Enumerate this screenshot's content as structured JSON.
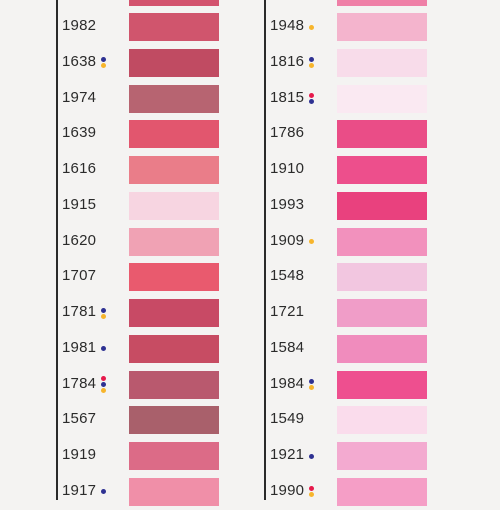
{
  "colors": {
    "blue_dot": "#2e3192",
    "yellow_dot": "#f7b52c",
    "red_dot": "#e6194b"
  },
  "left_column": {
    "top_swatch": "#d3536e",
    "rows": [
      {
        "code": "1982",
        "swatch": "#d0556d",
        "dots": []
      },
      {
        "code": "1638",
        "swatch": "#c04b62",
        "dots": [
          "blue_dot",
          "yellow_dot"
        ]
      },
      {
        "code": "1974",
        "swatch": "#b76471",
        "dots": []
      },
      {
        "code": "1639",
        "swatch": "#e2566e",
        "dots": []
      },
      {
        "code": "1616",
        "swatch": "#ea7d89",
        "dots": []
      },
      {
        "code": "1915",
        "swatch": "#f7d5e1",
        "dots": []
      },
      {
        "code": "1620",
        "swatch": "#f0a2b4",
        "dots": []
      },
      {
        "code": "1707",
        "swatch": "#e95a6e",
        "dots": []
      },
      {
        "code": "1781",
        "swatch": "#c84a65",
        "dots": [
          "blue_dot",
          "yellow_dot"
        ]
      },
      {
        "code": "1981",
        "swatch": "#c74c63",
        "dots": [
          "blue_dot"
        ]
      },
      {
        "code": "1784",
        "swatch": "#b9596e",
        "dots": [
          "red_dot",
          "blue_dot",
          "yellow_dot"
        ]
      },
      {
        "code": "1567",
        "swatch": "#a9606b",
        "dots": []
      },
      {
        "code": "1919",
        "swatch": "#dc6b87",
        "dots": []
      },
      {
        "code": "1917",
        "swatch": "#f08fa8",
        "dots": [
          "blue_dot"
        ]
      }
    ]
  },
  "right_column": {
    "top_swatch": "#ef7fa7",
    "rows": [
      {
        "code": "1948",
        "swatch": "#f4b4cd",
        "dots": [
          "yellow_dot"
        ]
      },
      {
        "code": "1816",
        "swatch": "#f8dcea",
        "dots": [
          "blue_dot",
          "yellow_dot"
        ]
      },
      {
        "code": "1815",
        "swatch": "#fae9f2",
        "dots": [
          "red_dot",
          "blue_dot"
        ]
      },
      {
        "code": "1786",
        "swatch": "#ea4d87",
        "dots": []
      },
      {
        "code": "1910",
        "swatch": "#ed4f8c",
        "dots": []
      },
      {
        "code": "1993",
        "swatch": "#e9417e",
        "dots": []
      },
      {
        "code": "1909",
        "swatch": "#f291bd",
        "dots": [
          "yellow_dot"
        ]
      },
      {
        "code": "1548",
        "swatch": "#f2c6e0",
        "dots": []
      },
      {
        "code": "1721",
        "swatch": "#f09dc8",
        "dots": []
      },
      {
        "code": "1584",
        "swatch": "#f08cbd",
        "dots": []
      },
      {
        "code": "1984",
        "swatch": "#ee4f8f",
        "dots": [
          "blue_dot",
          "yellow_dot"
        ]
      },
      {
        "code": "1549",
        "swatch": "#fadcec",
        "dots": []
      },
      {
        "code": "1921",
        "swatch": "#f3aad0",
        "dots": [
          "blue_dot"
        ]
      },
      {
        "code": "1990",
        "swatch": "#f59ec6",
        "dots": [
          "red_dot",
          "yellow_dot"
        ]
      }
    ]
  }
}
